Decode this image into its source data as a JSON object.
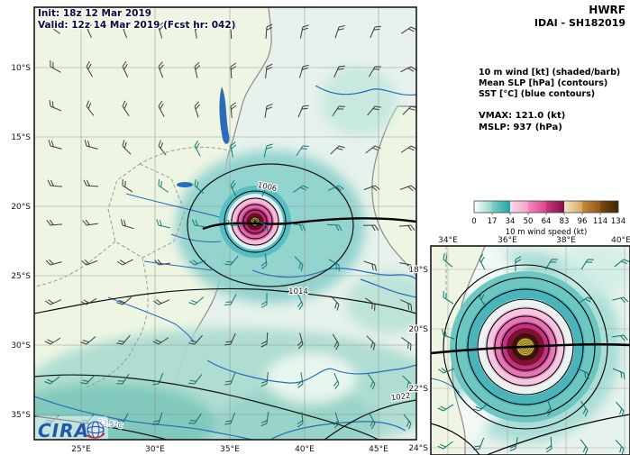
{
  "header": {
    "model": "HWRF",
    "storm": "IDAI - SH182019"
  },
  "overlay": {
    "init": "Init:  18z 12 Mar 2019",
    "valid": "Valid: 12z 14 Mar 2019 (Fcst hr: 042)"
  },
  "legend": {
    "wind": "10 m wind [kt] (shaded/barb)",
    "slp": "Mean SLP [hPa] (contours)",
    "sst": "SST [°C] (blue contours)",
    "vmax": "VMAX: 121.0 (kt)",
    "mslp": "MSLP:  937 (hPa)"
  },
  "storm_metrics": {
    "vmax_kt": 121.0,
    "mslp_hpa": 937
  },
  "colorbar": {
    "label": "10 m wind speed (kt)",
    "ticks": [
      "0",
      "17",
      "34",
      "50",
      "64",
      "83",
      "96",
      "114",
      "134"
    ],
    "segment_colors": [
      "#ffffff",
      "#8ed7cb",
      "#1fa3a3",
      "#f2a2c9",
      "#dd4490",
      "#7c1340",
      "#d8a964",
      "#8f5a14",
      "#3f2405"
    ]
  },
  "main_map": {
    "lat_labels": [
      "10°S",
      "15°S",
      "20°S",
      "25°S",
      "30°S",
      "35°S"
    ],
    "lon_labels": [
      "25°E",
      "30°E",
      "35°E",
      "40°E",
      "45°E"
    ],
    "contour_labels": {
      "slp_outer": "1014",
      "slp_south": "1022",
      "slp_inner": "1006",
      "sst": "23.5°C"
    }
  },
  "inset_map": {
    "lon_labels": [
      "34°E",
      "36°E",
      "38°E",
      "40°E"
    ],
    "lat_labels": [
      "18°S",
      "20°S",
      "22°S",
      "24°S"
    ]
  },
  "logo": {
    "text": "CIRA"
  }
}
